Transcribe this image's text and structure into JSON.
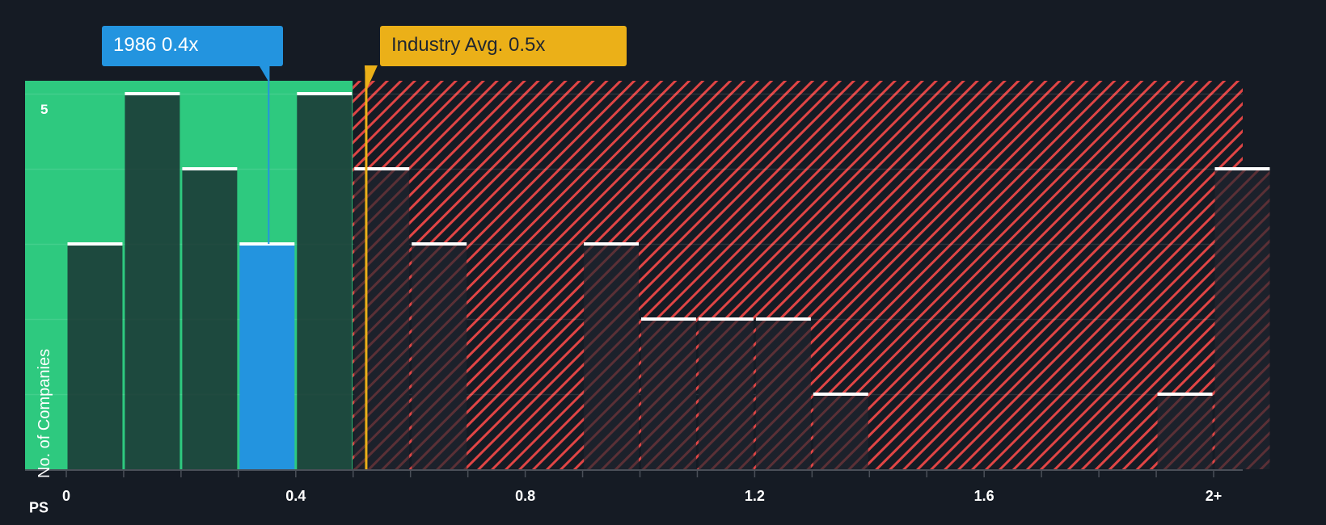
{
  "chart_data": {
    "type": "bar",
    "title": "",
    "xlabel": "PS",
    "ylabel": "No. of Companies",
    "x_tick_labels": [
      "0",
      "0.4",
      "0.8",
      "1.2",
      "1.6",
      "2+"
    ],
    "x_tick_values": [
      0,
      0.4,
      0.8,
      1.2,
      1.6,
      2.0
    ],
    "y_tick_labels": [
      "5"
    ],
    "ylim": [
      0,
      5.15
    ],
    "bin_width": 0.1,
    "categories": [
      "0-0.1",
      "0.1-0.2",
      "0.2-0.3",
      "0.3-0.4",
      "0.4-0.5",
      "0.5-0.6",
      "0.6-0.7",
      "0.7-0.8",
      "0.8-0.9",
      "0.9-1.0",
      "1.0-1.1",
      "1.1-1.2",
      "1.2-1.3",
      "1.3-1.4",
      "1.4-1.5",
      "1.5-1.6",
      "1.6-1.7",
      "1.7-1.8",
      "1.8-1.9",
      "1.9-2.0",
      "2+"
    ],
    "bin_starts": [
      0,
      0.1,
      0.2,
      0.3,
      0.4,
      0.5,
      0.6,
      0.7,
      0.8,
      0.9,
      1.0,
      1.1,
      1.2,
      1.3,
      1.4,
      1.5,
      1.6,
      1.7,
      1.8,
      1.9,
      2.0
    ],
    "values": [
      3,
      5,
      4,
      3,
      5,
      4,
      3,
      0,
      0,
      3,
      2,
      2,
      2,
      1,
      0,
      0,
      0,
      0,
      0,
      1,
      4
    ],
    "highlight_index": 3,
    "company": {
      "label": "1986 0.4x",
      "value": 0.35,
      "color": "#2394df"
    },
    "industry_avg": {
      "label": "Industry Avg. 0.5x",
      "value": 0.52,
      "color": "#ebb018"
    },
    "undervalued_zone": {
      "from": 0,
      "to": 0.5,
      "color": "#2ec97f"
    },
    "overvalued_zone": {
      "from": 0.5,
      "to": 2.1,
      "hatch_color": "#e04545"
    },
    "grid": true,
    "legend": "none"
  }
}
